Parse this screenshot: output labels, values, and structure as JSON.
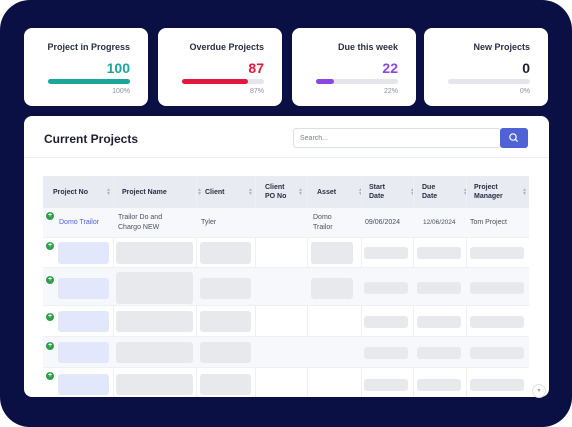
{
  "stats": [
    {
      "title": "Project in Progress",
      "value": "100",
      "percent_label": "100%",
      "percent": 1.0,
      "color": "#1aa79a"
    },
    {
      "title": "Overdue Projects",
      "value": "87",
      "percent_label": "87%",
      "percent": 0.87,
      "color": "#e2183d"
    },
    {
      "title": "Due this week",
      "value": "22",
      "percent_label": "22%",
      "percent": 0.22,
      "color": "#8b47e0"
    },
    {
      "title": "New Projects",
      "value": "0",
      "percent_label": "0%",
      "percent": 0.0,
      "color": "#1c1f33"
    }
  ],
  "panel": {
    "title": "Current Projects",
    "search_placeholder": "Search..."
  },
  "table": {
    "headers": [
      "Project No",
      "Project Name",
      "Client",
      "Client PO No",
      "Asset",
      "Start Date",
      "Due Date",
      "Project Manager"
    ],
    "first_row": {
      "project_no": "Domo Trailor",
      "project_name": "Trailor Do and Chargo NEW",
      "client": "Tyler",
      "client_po": "",
      "asset": "Domo Trailor",
      "start_date": "09/06/2024",
      "due_date": "12/06/2024",
      "manager": "Tom Project"
    }
  },
  "icons": {
    "search": "search-icon",
    "expand": "plus-circle-icon",
    "sort": "sort-arrows-icon",
    "scroll": "chevron-down-icon"
  }
}
